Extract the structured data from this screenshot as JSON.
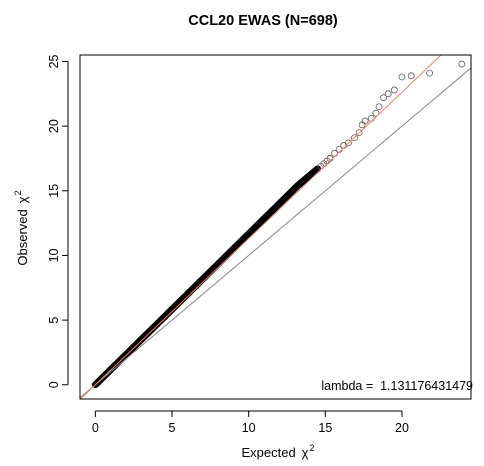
{
  "chart_data": {
    "type": "scatter",
    "title": "CCL20 EWAS (N=698)",
    "xlabel": "Expected",
    "ylabel": "Observed",
    "label_symbol": "χ",
    "label_superscript": "2",
    "xlim": [
      -1,
      24.5
    ],
    "ylim": [
      -1.1,
      25.5
    ],
    "x_ticks": [
      0,
      5,
      10,
      15,
      20
    ],
    "y_ticks": [
      0,
      5,
      10,
      15,
      20,
      25
    ],
    "grid": false,
    "annotation": "lambda =  1.131176431479",
    "lambda": 1.131176431479,
    "reference_lines": [
      {
        "name": "identity",
        "intercept": 0,
        "slope": 1,
        "color": "#888888"
      },
      {
        "name": "lambda-fit",
        "intercept": 0,
        "slope": 1.131176431479,
        "color": "#f08070"
      }
    ],
    "series": [
      {
        "marker": "open-circle",
        "color": "#000000",
        "dense_segments": [
          {
            "x": [
              0,
              13.2
            ],
            "y": [
              0,
              15.4
            ]
          },
          {
            "x": [
              13.2,
              14.5
            ],
            "y": [
              15.4,
              16.7
            ]
          }
        ],
        "points": [
          [
            14.7,
            16.9
          ],
          [
            14.9,
            17.1
          ],
          [
            15.1,
            17.3
          ],
          [
            15.3,
            17.5
          ],
          [
            15.6,
            17.9
          ],
          [
            15.9,
            18.2
          ],
          [
            16.2,
            18.5
          ],
          [
            16.5,
            18.7
          ],
          [
            16.9,
            19.1
          ],
          [
            17.2,
            19.5
          ],
          [
            17.4,
            20.1
          ],
          [
            17.6,
            20.4
          ],
          [
            18.0,
            20.6
          ],
          [
            18.3,
            21.0
          ],
          [
            18.5,
            21.5
          ],
          [
            18.8,
            22.2
          ],
          [
            19.1,
            22.5
          ],
          [
            19.5,
            22.8
          ],
          [
            20.0,
            23.8
          ],
          [
            20.6,
            23.9
          ],
          [
            21.8,
            24.1
          ],
          [
            23.9,
            24.8
          ]
        ]
      }
    ]
  }
}
